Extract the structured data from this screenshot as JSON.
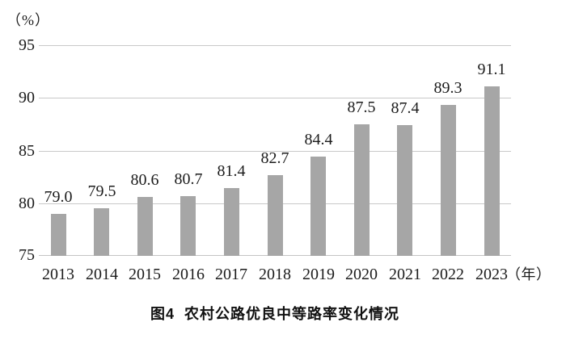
{
  "chart_data": {
    "type": "bar",
    "title": "图4  农村公路优良中等路率变化情况",
    "y_axis_unit": "（%）",
    "x_axis_unit": "（年）",
    "categories": [
      "2013",
      "2014",
      "2015",
      "2016",
      "2017",
      "2018",
      "2019",
      "2020",
      "2021",
      "2022",
      "2023"
    ],
    "values": [
      79.0,
      79.5,
      80.6,
      80.7,
      81.4,
      82.7,
      84.4,
      87.5,
      87.4,
      89.3,
      91.1
    ],
    "value_labels": [
      "79.0",
      "79.5",
      "80.6",
      "80.7",
      "81.4",
      "82.7",
      "84.4",
      "87.5",
      "87.4",
      "89.3",
      "91.1"
    ],
    "ylim": [
      75,
      95
    ],
    "yticks": [
      "95",
      "90",
      "85",
      "80",
      "75"
    ],
    "grid": true,
    "legend": "none",
    "colors": {
      "bar": "#a6a6a6",
      "gridline": "#c9c9c9",
      "axis_line": "#c4c4c4",
      "text": "#1c1c1c",
      "background": "#ffffff"
    }
  }
}
